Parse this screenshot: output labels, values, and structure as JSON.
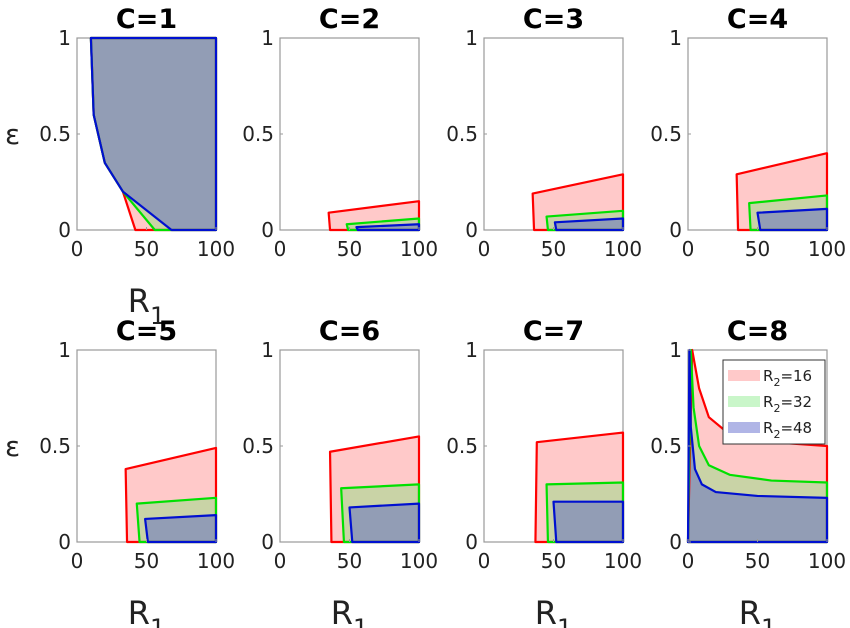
{
  "chart_data": [
    {
      "type": "area",
      "title": "C=1",
      "xlabel": "R_1",
      "ylabel": "ε",
      "xlim": [
        0,
        100
      ],
      "ylim": [
        0,
        1
      ],
      "xticks": [
        "0",
        "50",
        "100"
      ],
      "yticks": [
        "0",
        "0.5",
        "1"
      ],
      "series": [
        {
          "name": "R_2=16",
          "points": [
            [
              10,
              1
            ],
            [
              12,
              0.6
            ],
            [
              20,
              0.35
            ],
            [
              33,
              0.2
            ],
            [
              42,
              0
            ],
            [
              100,
              0
            ],
            [
              100,
              1
            ]
          ]
        },
        {
          "name": "R_2=32",
          "points": [
            [
              10,
              1
            ],
            [
              12,
              0.6
            ],
            [
              20,
              0.35
            ],
            [
              33,
              0.2
            ],
            [
              56,
              0
            ],
            [
              100,
              0
            ],
            [
              100,
              1
            ]
          ]
        },
        {
          "name": "R_2=48",
          "points": [
            [
              10,
              1
            ],
            [
              12,
              0.6
            ],
            [
              20,
              0.35
            ],
            [
              33,
              0.2
            ],
            [
              68,
              0
            ],
            [
              100,
              0
            ],
            [
              100,
              1
            ]
          ]
        }
      ]
    },
    {
      "type": "area",
      "title": "C=2",
      "xlabel": "",
      "ylabel": "",
      "xlim": [
        0,
        100
      ],
      "ylim": [
        0,
        1
      ],
      "xticks": [
        "0",
        "50",
        "100"
      ],
      "yticks": [
        "0",
        "0.5",
        "1"
      ],
      "series": [
        {
          "name": "R_2=16",
          "points": [
            [
              36,
              0
            ],
            [
              35,
              0.09
            ],
            [
              100,
              0.15
            ],
            [
              100,
              0
            ]
          ]
        },
        {
          "name": "R_2=32",
          "points": [
            [
              49,
              0
            ],
            [
              48,
              0.03
            ],
            [
              100,
              0.06
            ],
            [
              100,
              0
            ]
          ]
        },
        {
          "name": "R_2=48",
          "points": [
            [
              56,
              0
            ],
            [
              55,
              0.015
            ],
            [
              100,
              0.03
            ],
            [
              100,
              0
            ]
          ]
        }
      ]
    },
    {
      "type": "area",
      "title": "C=3",
      "xlabel": "",
      "ylabel": "",
      "xlim": [
        0,
        100
      ],
      "ylim": [
        0,
        1
      ],
      "xticks": [
        "0",
        "50",
        "100"
      ],
      "yticks": [
        "0",
        "0.5",
        "1"
      ],
      "series": [
        {
          "name": "R_2=16",
          "points": [
            [
              36,
              0
            ],
            [
              35,
              0.19
            ],
            [
              100,
              0.29
            ],
            [
              100,
              0
            ]
          ]
        },
        {
          "name": "R_2=32",
          "points": [
            [
              46,
              0
            ],
            [
              45,
              0.07
            ],
            [
              100,
              0.1
            ],
            [
              100,
              0
            ]
          ]
        },
        {
          "name": "R_2=48",
          "points": [
            [
              52,
              0
            ],
            [
              51,
              0.04
            ],
            [
              100,
              0.06
            ],
            [
              100,
              0
            ]
          ]
        }
      ]
    },
    {
      "type": "area",
      "title": "C=4",
      "xlabel": "",
      "ylabel": "",
      "xlim": [
        0,
        100
      ],
      "ylim": [
        0,
        1
      ],
      "xticks": [
        "0",
        "50",
        "100"
      ],
      "yticks": [
        "0",
        "0.5",
        "1"
      ],
      "series": [
        {
          "name": "R_2=16",
          "points": [
            [
              36,
              0
            ],
            [
              35,
              0.29
            ],
            [
              100,
              0.4
            ],
            [
              100,
              0
            ]
          ]
        },
        {
          "name": "R_2=32",
          "points": [
            [
              45,
              0
            ],
            [
              44,
              0.14
            ],
            [
              100,
              0.18
            ],
            [
              100,
              0
            ]
          ]
        },
        {
          "name": "R_2=48",
          "points": [
            [
              52,
              0
            ],
            [
              50,
              0.09
            ],
            [
              100,
              0.11
            ],
            [
              100,
              0
            ]
          ]
        }
      ]
    },
    {
      "type": "area",
      "title": "C=5",
      "xlabel": "R_1",
      "ylabel": "ε",
      "xlim": [
        0,
        100
      ],
      "ylim": [
        0,
        1
      ],
      "xticks": [
        "0",
        "50",
        "100"
      ],
      "yticks": [
        "0",
        "0.5",
        "1"
      ],
      "series": [
        {
          "name": "R_2=16",
          "points": [
            [
              36,
              0
            ],
            [
              35,
              0.38
            ],
            [
              100,
              0.49
            ],
            [
              100,
              0
            ]
          ]
        },
        {
          "name": "R_2=32",
          "points": [
            [
              45,
              0
            ],
            [
              43,
              0.2
            ],
            [
              100,
              0.23
            ],
            [
              100,
              0
            ]
          ]
        },
        {
          "name": "R_2=48",
          "points": [
            [
              51,
              0
            ],
            [
              49,
              0.12
            ],
            [
              100,
              0.14
            ],
            [
              100,
              0
            ]
          ]
        }
      ]
    },
    {
      "type": "area",
      "title": "C=6",
      "xlabel": "R_1",
      "ylabel": "",
      "xlim": [
        0,
        100
      ],
      "ylim": [
        0,
        1
      ],
      "xticks": [
        "0",
        "50",
        "100"
      ],
      "yticks": [
        "0",
        "0.5",
        "1"
      ],
      "series": [
        {
          "name": "R_2=16",
          "points": [
            [
              37,
              0
            ],
            [
              36,
              0.47
            ],
            [
              100,
              0.55
            ],
            [
              100,
              0
            ]
          ]
        },
        {
          "name": "R_2=32",
          "points": [
            [
              46,
              0
            ],
            [
              44,
              0.28
            ],
            [
              100,
              0.3
            ],
            [
              100,
              0
            ]
          ]
        },
        {
          "name": "R_2=48",
          "points": [
            [
              52,
              0
            ],
            [
              50,
              0.18
            ],
            [
              100,
              0.2
            ],
            [
              100,
              0
            ]
          ]
        }
      ]
    },
    {
      "type": "area",
      "title": "C=7",
      "xlabel": "R_1",
      "ylabel": "",
      "xlim": [
        0,
        100
      ],
      "ylim": [
        0,
        1
      ],
      "xticks": [
        "0",
        "50",
        "100"
      ],
      "yticks": [
        "0",
        "0.5",
        "1"
      ],
      "series": [
        {
          "name": "R_2=16",
          "points": [
            [
              37,
              0
            ],
            [
              38,
              0.52
            ],
            [
              100,
              0.57
            ],
            [
              100,
              0
            ]
          ]
        },
        {
          "name": "R_2=32",
          "points": [
            [
              46,
              0
            ],
            [
              45,
              0.3
            ],
            [
              100,
              0.31
            ],
            [
              100,
              0
            ]
          ]
        },
        {
          "name": "R_2=48",
          "points": [
            [
              52,
              0
            ],
            [
              50,
              0.21
            ],
            [
              100,
              0.21
            ],
            [
              100,
              0
            ]
          ]
        }
      ]
    },
    {
      "type": "area",
      "title": "C=8",
      "xlabel": "R_1",
      "ylabel": "",
      "xlim": [
        0,
        100
      ],
      "ylim": [
        0,
        1
      ],
      "xticks": [
        "0",
        "50",
        "100"
      ],
      "yticks": [
        "0",
        "0.5",
        "1"
      ],
      "legend": {
        "placement": "top-right",
        "entries": [
          "R_2=16",
          "R_2=32",
          "R_2=48"
        ]
      },
      "series": [
        {
          "name": "R_2=16",
          "points": [
            [
              3,
              1
            ],
            [
              8,
              0.8
            ],
            [
              15,
              0.65
            ],
            [
              30,
              0.56
            ],
            [
              60,
              0.52
            ],
            [
              100,
              0.5
            ],
            [
              100,
              0
            ],
            [
              0,
              0
            ]
          ]
        },
        {
          "name": "R_2=32",
          "points": [
            [
              2,
              1
            ],
            [
              4,
              0.7
            ],
            [
              8,
              0.5
            ],
            [
              15,
              0.4
            ],
            [
              30,
              0.35
            ],
            [
              60,
              0.32
            ],
            [
              100,
              0.31
            ],
            [
              100,
              0
            ],
            [
              0,
              0
            ]
          ]
        },
        {
          "name": "R_2=48",
          "points": [
            [
              1,
              1
            ],
            [
              2,
              0.6
            ],
            [
              5,
              0.38
            ],
            [
              10,
              0.3
            ],
            [
              20,
              0.26
            ],
            [
              50,
              0.24
            ],
            [
              100,
              0.23
            ],
            [
              100,
              0
            ],
            [
              0,
              0
            ]
          ]
        }
      ]
    }
  ],
  "colors": {
    "R_2=16": "#ff0000",
    "R_2=32": "#00e000",
    "R_2=48": "#0010d0"
  },
  "fills": {
    "R_2=16": "rgba(255,100,100,0.35)",
    "R_2=32": "rgba(100,230,100,0.35)",
    "R_2=48": "rgba(80,90,200,0.45)"
  },
  "legend_labels": [
    {
      "base": "R",
      "sub": "2",
      "val": "=16"
    },
    {
      "base": "R",
      "sub": "2",
      "val": "=32"
    },
    {
      "base": "R",
      "sub": "2",
      "val": "=48"
    }
  ]
}
